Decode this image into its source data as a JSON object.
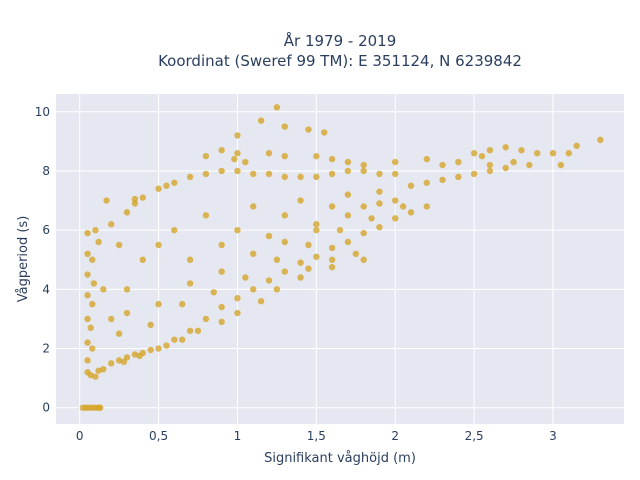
{
  "chart_data": {
    "type": "scatter",
    "title_line1": "År 1979 - 2019",
    "title_line2": "Koordinat (Sweref 99 TM): E 351124, N 6239842",
    "xlabel": "Signifikant våghöjd (m)",
    "ylabel": "Vågperiod (s)",
    "xlim": [
      -0.15,
      3.45
    ],
    "ylim": [
      -0.55,
      10.6
    ],
    "x_ticks": [
      0,
      0.5,
      1,
      1.5,
      2,
      2.5,
      3
    ],
    "x_tick_labels": [
      "0",
      "0,5",
      "1",
      "1,5",
      "2",
      "2,5",
      "3"
    ],
    "y_ticks": [
      0,
      2,
      4,
      6,
      8,
      10
    ],
    "y_tick_labels": [
      "0",
      "2",
      "4",
      "6",
      "8",
      "10"
    ],
    "grid": true,
    "marker_color": "#D4A21F",
    "plot_bg": "#E5E8F0",
    "points": [
      [
        0.02,
        0.0
      ],
      [
        0.04,
        0.0
      ],
      [
        0.06,
        0.0
      ],
      [
        0.08,
        0.0
      ],
      [
        0.1,
        0.0
      ],
      [
        0.12,
        0.0
      ],
      [
        0.13,
        0.0
      ],
      [
        0.05,
        1.2
      ],
      [
        0.07,
        1.1
      ],
      [
        0.1,
        1.05
      ],
      [
        0.05,
        1.6
      ],
      [
        0.05,
        2.2
      ],
      [
        0.05,
        3.0
      ],
      [
        0.05,
        3.8
      ],
      [
        0.05,
        4.5
      ],
      [
        0.05,
        5.2
      ],
      [
        0.05,
        5.9
      ],
      [
        0.08,
        2.0
      ],
      [
        0.08,
        3.5
      ],
      [
        0.08,
        5.0
      ],
      [
        0.1,
        6.0
      ],
      [
        0.12,
        5.6
      ],
      [
        0.09,
        4.2
      ],
      [
        0.07,
        2.7
      ],
      [
        0.15,
        1.3
      ],
      [
        0.2,
        1.5
      ],
      [
        0.3,
        1.7
      ],
      [
        0.4,
        1.85
      ],
      [
        0.5,
        2.0
      ],
      [
        0.6,
        2.3
      ],
      [
        0.7,
        2.6
      ],
      [
        0.8,
        3.0
      ],
      [
        0.9,
        3.4
      ],
      [
        1.0,
        3.7
      ],
      [
        1.1,
        4.0
      ],
      [
        1.2,
        4.3
      ],
      [
        1.3,
        4.6
      ],
      [
        1.4,
        4.9
      ],
      [
        1.5,
        5.1
      ],
      [
        1.6,
        5.4
      ],
      [
        1.7,
        5.6
      ],
      [
        1.8,
        5.9
      ],
      [
        1.9,
        6.1
      ],
      [
        2.0,
        6.4
      ],
      [
        2.1,
        6.6
      ],
      [
        2.2,
        6.8
      ],
      [
        0.15,
        4.0
      ],
      [
        0.2,
        6.2
      ],
      [
        0.25,
        5.5
      ],
      [
        0.3,
        6.6
      ],
      [
        0.35,
        6.9
      ],
      [
        0.4,
        7.1
      ],
      [
        0.5,
        7.4
      ],
      [
        0.6,
        7.6
      ],
      [
        0.7,
        7.8
      ],
      [
        0.8,
        7.9
      ],
      [
        0.9,
        8.0
      ],
      [
        1.0,
        8.0
      ],
      [
        1.1,
        7.9
      ],
      [
        1.2,
        7.9
      ],
      [
        1.3,
        7.8
      ],
      [
        1.4,
        7.8
      ],
      [
        1.5,
        7.8
      ],
      [
        1.6,
        7.9
      ],
      [
        1.7,
        8.0
      ],
      [
        1.8,
        8.0
      ],
      [
        1.9,
        7.9
      ],
      [
        2.0,
        7.9
      ],
      [
        0.2,
        3.0
      ],
      [
        0.3,
        4.0
      ],
      [
        0.4,
        5.0
      ],
      [
        0.5,
        5.5
      ],
      [
        0.6,
        6.0
      ],
      [
        0.7,
        5.0
      ],
      [
        0.8,
        6.5
      ],
      [
        0.9,
        5.5
      ],
      [
        1.0,
        6.0
      ],
      [
        1.1,
        6.8
      ],
      [
        1.2,
        5.8
      ],
      [
        1.3,
        6.5
      ],
      [
        1.4,
        7.0
      ],
      [
        1.5,
        6.2
      ],
      [
        1.6,
        6.8
      ],
      [
        1.7,
        7.2
      ],
      [
        1.8,
        6.8
      ],
      [
        1.9,
        7.3
      ],
      [
        2.0,
        7.0
      ],
      [
        2.1,
        7.5
      ],
      [
        2.2,
        7.6
      ],
      [
        2.3,
        7.7
      ],
      [
        2.4,
        7.8
      ],
      [
        2.5,
        7.9
      ],
      [
        2.6,
        8.0
      ],
      [
        2.7,
        8.1
      ],
      [
        0.3,
        3.2
      ],
      [
        0.5,
        3.5
      ],
      [
        0.7,
        4.2
      ],
      [
        0.9,
        4.6
      ],
      [
        1.1,
        5.2
      ],
      [
        1.3,
        5.6
      ],
      [
        1.5,
        6.0
      ],
      [
        1.7,
        6.5
      ],
      [
        1.9,
        6.9
      ],
      [
        0.25,
        2.5
      ],
      [
        0.45,
        2.8
      ],
      [
        0.65,
        3.5
      ],
      [
        0.85,
        3.9
      ],
      [
        1.05,
        4.4
      ],
      [
        1.25,
        5.0
      ],
      [
        1.45,
        5.5
      ],
      [
        1.65,
        6.0
      ],
      [
        1.85,
        6.4
      ],
      [
        2.05,
        6.8
      ],
      [
        0.8,
        8.5
      ],
      [
        0.9,
        8.7
      ],
      [
        1.0,
        8.6
      ],
      [
        1.05,
        8.3
      ],
      [
        1.2,
        8.6
      ],
      [
        1.3,
        8.5
      ],
      [
        1.5,
        8.5
      ],
      [
        1.6,
        8.4
      ],
      [
        1.7,
        8.3
      ],
      [
        1.8,
        8.2
      ],
      [
        2.0,
        8.3
      ],
      [
        2.2,
        8.4
      ],
      [
        2.3,
        8.2
      ],
      [
        2.4,
        8.3
      ],
      [
        2.5,
        8.6
      ],
      [
        2.6,
        8.7
      ],
      [
        2.7,
        8.8
      ],
      [
        2.8,
        8.7
      ],
      [
        2.9,
        8.6
      ],
      [
        3.0,
        8.6
      ],
      [
        2.75,
        8.3
      ],
      [
        2.85,
        8.2
      ],
      [
        2.6,
        8.2
      ],
      [
        2.55,
        8.5
      ],
      [
        1.15,
        9.7
      ],
      [
        1.3,
        9.5
      ],
      [
        1.45,
        9.4
      ],
      [
        1.0,
        9.2
      ],
      [
        0.98,
        8.4
      ],
      [
        1.25,
        10.15
      ],
      [
        1.55,
        9.3
      ],
      [
        3.15,
        8.85
      ],
      [
        3.3,
        9.05
      ],
      [
        3.05,
        8.2
      ],
      [
        3.1,
        8.6
      ],
      [
        1.6,
        4.75
      ],
      [
        1.4,
        4.4
      ],
      [
        1.25,
        4.0
      ],
      [
        1.15,
        3.6
      ],
      [
        1.0,
        3.2
      ],
      [
        0.9,
        2.9
      ],
      [
        0.75,
        2.6
      ],
      [
        0.65,
        2.3
      ],
      [
        0.55,
        2.1
      ],
      [
        1.8,
        5.0
      ],
      [
        1.75,
        5.2
      ],
      [
        1.6,
        5.0
      ],
      [
        1.45,
        4.7
      ],
      [
        0.35,
        7.05
      ],
      [
        0.17,
        7.0
      ],
      [
        0.55,
        7.5
      ],
      [
        0.45,
        1.95
      ],
      [
        0.35,
        1.8
      ],
      [
        0.25,
        1.6
      ],
      [
        0.12,
        1.25
      ],
      [
        0.28,
        1.55
      ],
      [
        0.38,
        1.75
      ]
    ]
  }
}
